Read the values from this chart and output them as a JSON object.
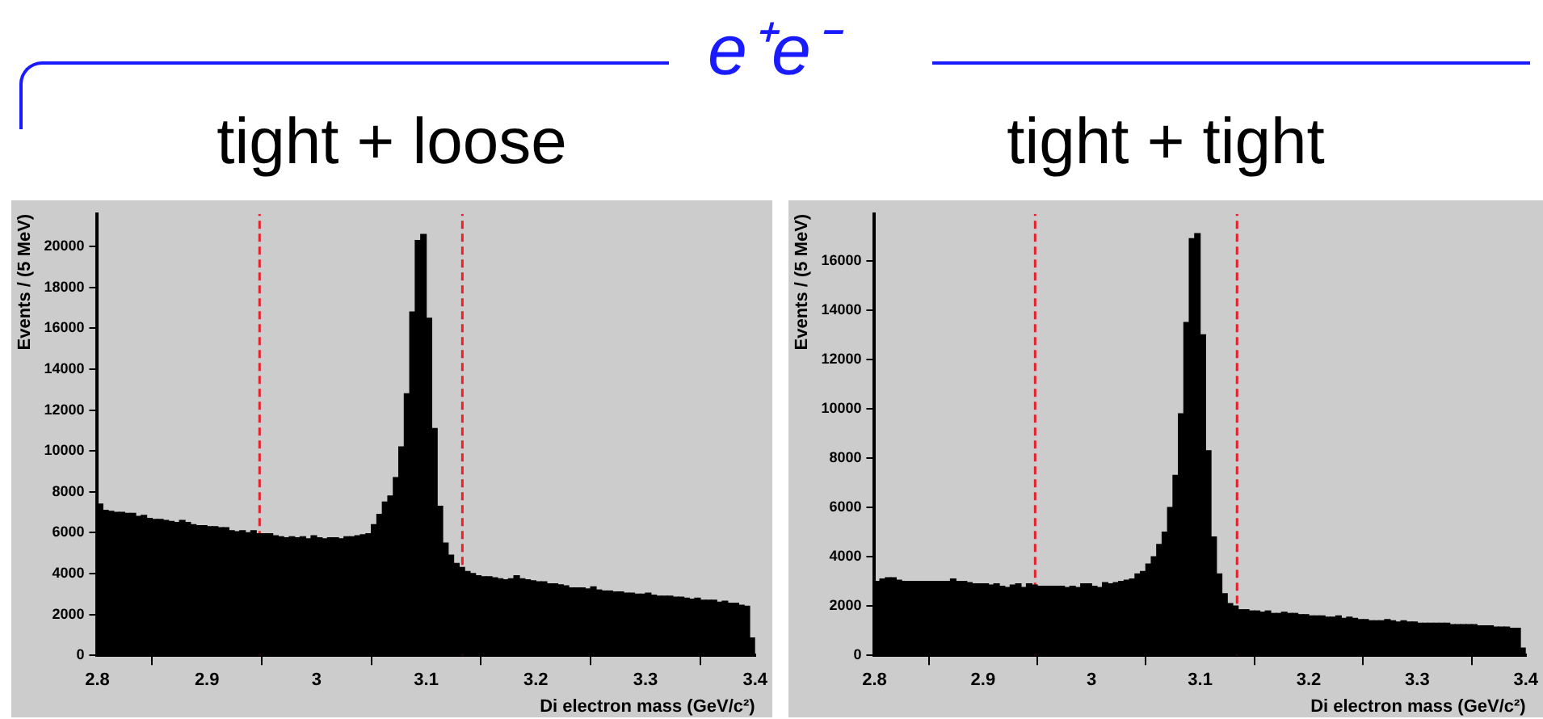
{
  "chart_data": [
    {
      "type": "other",
      "title": "e⁺e⁻",
      "color": "#1a1aff"
    },
    {
      "type": "histogram",
      "title": "tight + loose",
      "xlabel": "Di electron mass (GeV/c²)",
      "ylabel": "Events / (5 MeV)",
      "color": "#000000",
      "bins": [
        2.8,
        2.805,
        2.81,
        2.815,
        2.82,
        2.825,
        2.83,
        2.835,
        2.84,
        2.845,
        2.85,
        2.855,
        2.86,
        2.865,
        2.87,
        2.875,
        2.88,
        2.885,
        2.89,
        2.895,
        2.9,
        2.905,
        2.91,
        2.915,
        2.92,
        2.925,
        2.93,
        2.935,
        2.94,
        2.945,
        2.95,
        2.955,
        2.96,
        2.965,
        2.97,
        2.975,
        2.98,
        2.985,
        2.99,
        2.995,
        3,
        3.005,
        3.01,
        3.015,
        3.02,
        3.025,
        3.03,
        3.035,
        3.04,
        3.045,
        3.05,
        3.055,
        3.06,
        3.065,
        3.07,
        3.075,
        3.08,
        3.085,
        3.09,
        3.095,
        3.1,
        3.105,
        3.11,
        3.115,
        3.12,
        3.125,
        3.13,
        3.135,
        3.14,
        3.145,
        3.15,
        3.155,
        3.16,
        3.165,
        3.17,
        3.175,
        3.18,
        3.185,
        3.19,
        3.195,
        3.2,
        3.205,
        3.21,
        3.215,
        3.22,
        3.225,
        3.23,
        3.235,
        3.24,
        3.245,
        3.25,
        3.255,
        3.26,
        3.265,
        3.27,
        3.275,
        3.28,
        3.285,
        3.29,
        3.295,
        3.3,
        3.305,
        3.31,
        3.315,
        3.32,
        3.325,
        3.33,
        3.335,
        3.34,
        3.345,
        3.35,
        3.355,
        3.36,
        3.365,
        3.37,
        3.375,
        3.38,
        3.385,
        3.39,
        3.395,
        3.4
      ],
      "values": [
        7400,
        7100,
        7050,
        7000,
        7000,
        6950,
        6950,
        6800,
        6850,
        6700,
        6650,
        6650,
        6600,
        6550,
        6500,
        6600,
        6500,
        6400,
        6350,
        6350,
        6300,
        6300,
        6250,
        6250,
        6100,
        6050,
        6100,
        6000,
        6100,
        5950,
        5950,
        5950,
        5850,
        5800,
        5750,
        5800,
        5750,
        5800,
        5700,
        5850,
        5750,
        5700,
        5750,
        5750,
        5700,
        5800,
        5800,
        5850,
        5900,
        5950,
        6400,
        6900,
        7500,
        7800,
        8700,
        10200,
        12800,
        16800,
        20300,
        20600,
        16500,
        11100,
        7300,
        5500,
        4900,
        4500,
        4300,
        4100,
        4000,
        3900,
        3850,
        3850,
        3800,
        3750,
        3700,
        3750,
        3900,
        3750,
        3700,
        3650,
        3600,
        3600,
        3500,
        3500,
        3450,
        3400,
        3300,
        3300,
        3300,
        3250,
        3350,
        3200,
        3150,
        3150,
        3100,
        3100,
        3050,
        3050,
        3000,
        3000,
        3050,
        2950,
        2900,
        2900,
        2900,
        2850,
        2850,
        2800,
        2750,
        2800,
        2700,
        2700,
        2700,
        2600,
        2650,
        2550,
        2550,
        2450,
        2400,
        850
      ],
      "xlim": [
        2.8,
        3.4
      ],
      "xticks": [
        2.8,
        2.9,
        3,
        3.1,
        3.2,
        3.3,
        3.4
      ],
      "ylim": [
        0,
        21600
      ],
      "yticks": [
        0,
        2000,
        4000,
        6000,
        8000,
        10000,
        12000,
        14000,
        16000,
        18000,
        20000
      ],
      "ref_lines": [
        {
          "axis": "x",
          "value": 2.948,
          "color": "#e8202a",
          "line_style": "dashed"
        },
        {
          "axis": "x",
          "value": 3.133,
          "color": "#e8202a",
          "line_style": "dashed"
        }
      ],
      "grid": false,
      "legend": false
    },
    {
      "type": "histogram",
      "title": "tight + tight",
      "xlabel": "Di electron mass (GeV/c²)",
      "ylabel": "Events / (5 MeV)",
      "color": "#000000",
      "bins": [
        2.8,
        2.805,
        2.81,
        2.815,
        2.82,
        2.825,
        2.83,
        2.835,
        2.84,
        2.845,
        2.85,
        2.855,
        2.86,
        2.865,
        2.87,
        2.875,
        2.88,
        2.885,
        2.89,
        2.895,
        2.9,
        2.905,
        2.91,
        2.915,
        2.92,
        2.925,
        2.93,
        2.935,
        2.94,
        2.945,
        2.95,
        2.955,
        2.96,
        2.965,
        2.97,
        2.975,
        2.98,
        2.985,
        2.99,
        2.995,
        3,
        3.005,
        3.01,
        3.015,
        3.02,
        3.025,
        3.03,
        3.035,
        3.04,
        3.045,
        3.05,
        3.055,
        3.06,
        3.065,
        3.07,
        3.075,
        3.08,
        3.085,
        3.09,
        3.095,
        3.1,
        3.105,
        3.11,
        3.115,
        3.12,
        3.125,
        3.13,
        3.135,
        3.14,
        3.145,
        3.15,
        3.155,
        3.16,
        3.165,
        3.17,
        3.175,
        3.18,
        3.185,
        3.19,
        3.195,
        3.2,
        3.205,
        3.21,
        3.215,
        3.22,
        3.225,
        3.23,
        3.235,
        3.24,
        3.245,
        3.25,
        3.255,
        3.26,
        3.265,
        3.27,
        3.275,
        3.28,
        3.285,
        3.29,
        3.295,
        3.3,
        3.305,
        3.31,
        3.315,
        3.32,
        3.325,
        3.33,
        3.335,
        3.34,
        3.345,
        3.35,
        3.355,
        3.36,
        3.365,
        3.37,
        3.375,
        3.38,
        3.385,
        3.39,
        3.395,
        3.4
      ],
      "values": [
        3000,
        3100,
        3150,
        3150,
        3050,
        3000,
        3000,
        3000,
        3000,
        3000,
        3000,
        3000,
        3000,
        3000,
        3100,
        3000,
        3000,
        2950,
        2900,
        2900,
        2900,
        2850,
        2900,
        2800,
        2750,
        2850,
        2900,
        2750,
        2900,
        2850,
        2800,
        2800,
        2800,
        2800,
        2800,
        2750,
        2800,
        2750,
        2900,
        2900,
        2800,
        2750,
        2950,
        2900,
        2950,
        3000,
        3050,
        3100,
        3300,
        3400,
        3700,
        4000,
        4500,
        5000,
        6000,
        7300,
        9800,
        13500,
        16900,
        17100,
        13000,
        8300,
        4800,
        3300,
        2500,
        2100,
        2000,
        1850,
        1850,
        1800,
        1800,
        1750,
        1800,
        1700,
        1700,
        1750,
        1700,
        1700,
        1650,
        1650,
        1600,
        1600,
        1600,
        1550,
        1550,
        1600,
        1500,
        1550,
        1500,
        1450,
        1450,
        1400,
        1400,
        1400,
        1450,
        1400,
        1350,
        1400,
        1350,
        1350,
        1300,
        1300,
        1300,
        1300,
        1300,
        1300,
        1250,
        1250,
        1250,
        1250,
        1250,
        1200,
        1200,
        1200,
        1150,
        1150,
        1150,
        1100,
        1100,
        300
      ],
      "xlim": [
        2.8,
        3.4
      ],
      "xticks": [
        2.8,
        2.9,
        3,
        3.1,
        3.2,
        3.3,
        3.4
      ],
      "ylim": [
        0,
        17900
      ],
      "yticks": [
        0,
        2000,
        4000,
        6000,
        8000,
        10000,
        12000,
        14000,
        16000
      ],
      "ref_lines": [
        {
          "axis": "x",
          "value": 2.948,
          "color": "#e8202a",
          "line_style": "dashed"
        },
        {
          "axis": "x",
          "value": 3.134,
          "color": "#e8202a",
          "line_style": "dashed"
        }
      ],
      "grid": false,
      "legend": false
    }
  ]
}
